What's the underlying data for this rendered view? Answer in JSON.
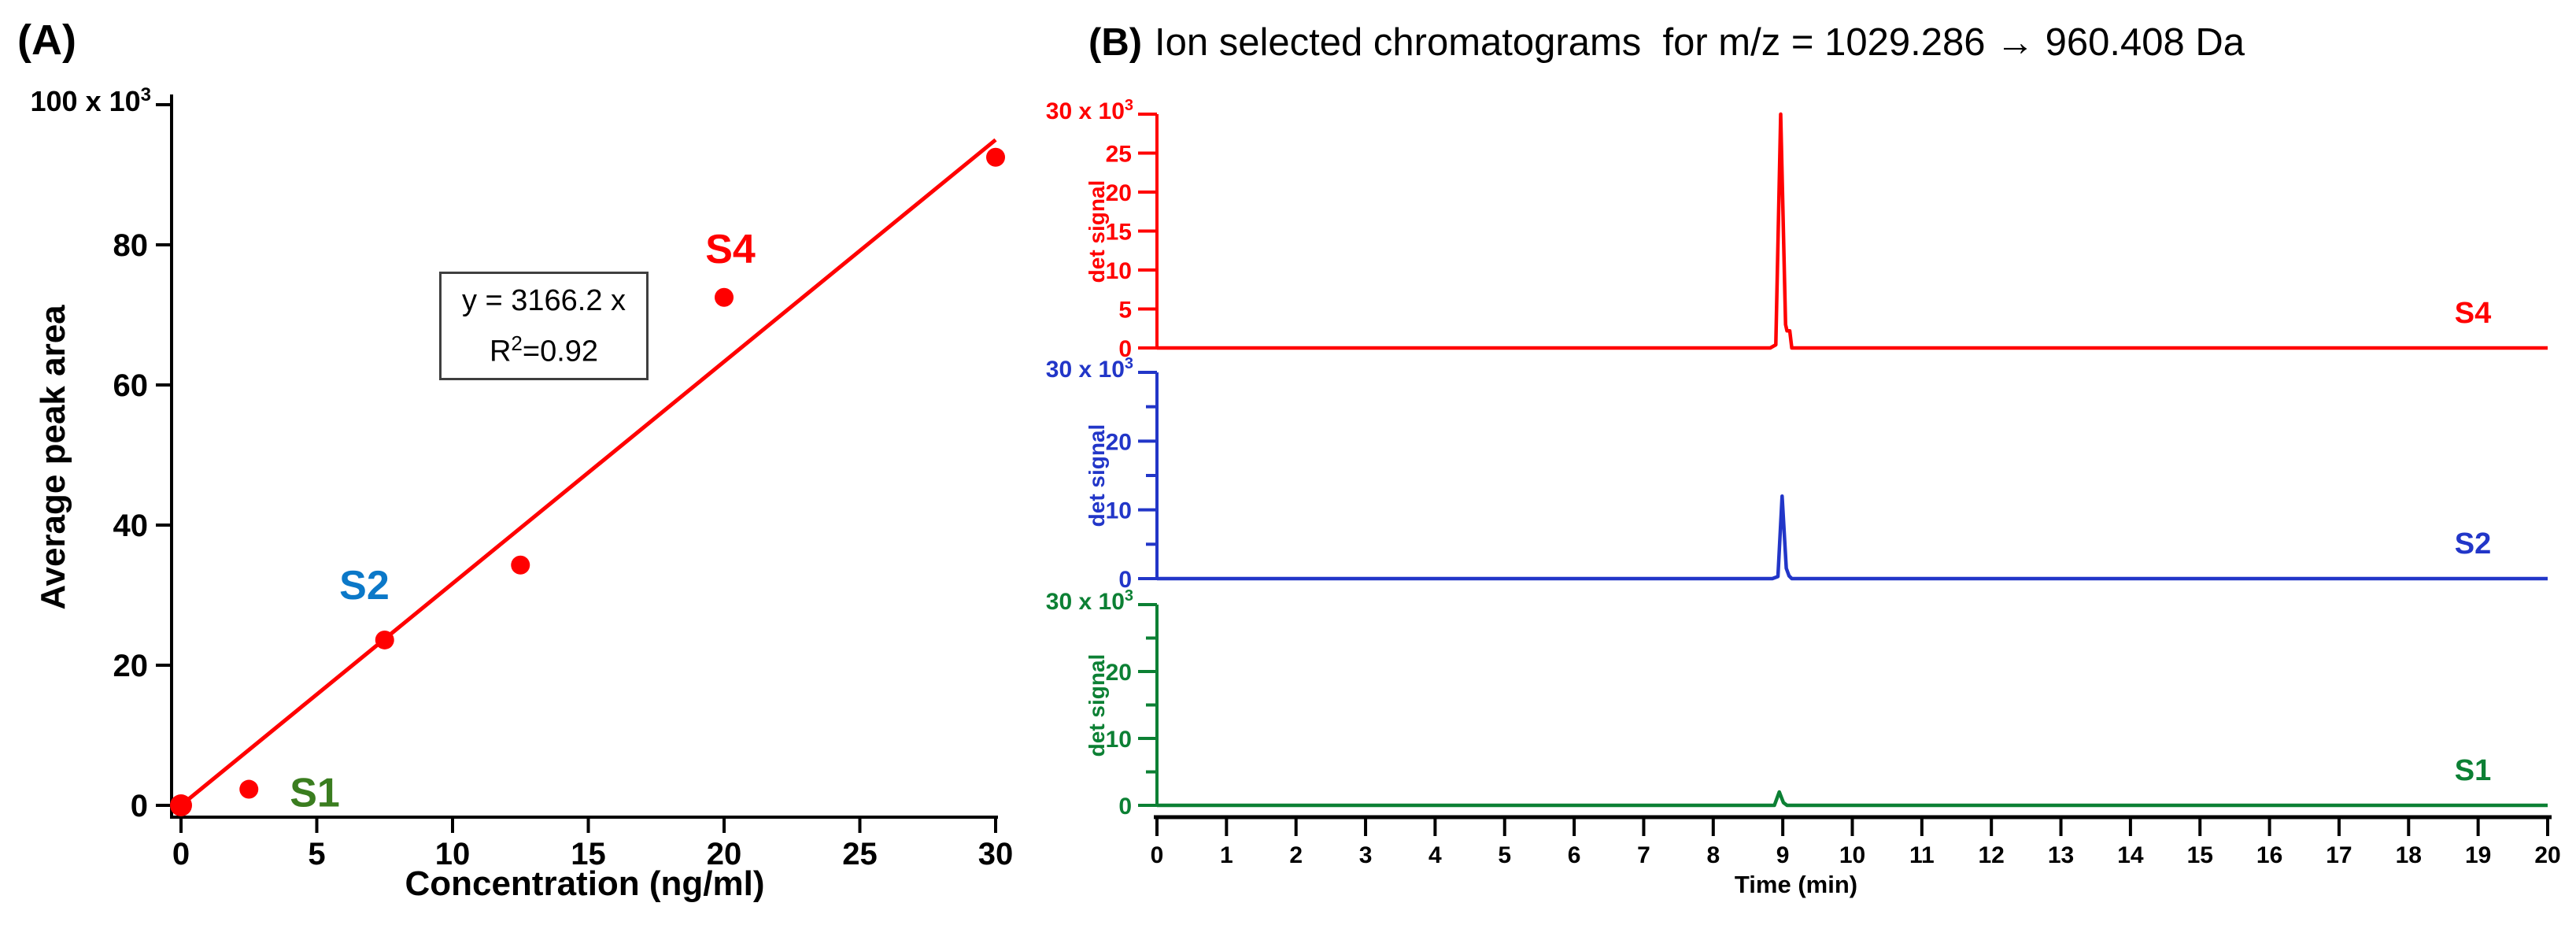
{
  "panel_a": {
    "tag": "(A)",
    "ylabel": "Average peak area",
    "xlabel": "Concentration (ng/ml)",
    "y_scale_label": {
      "base": "100 x 10",
      "exp": "3"
    },
    "equation_line": "y = 3166.2 x",
    "r_base": "R",
    "r_exp": "2",
    "r_rest": "=0.92"
  },
  "panel_b": {
    "tag": "(B)",
    "title": "Ion selected chromatograms  for m/z = 1029.286 → 960.408 Da",
    "scale_label": {
      "base": "30 x 10",
      "exp": "3"
    },
    "ylabel": "det signal",
    "xlabel": "Time (min)"
  },
  "chart_data": [
    {
      "type": "scatter",
      "panel": "A",
      "title": "Calibration curve",
      "xlabel": "Concentration (ng/ml)",
      "ylabel": "Average peak area",
      "y_scale_factor": "x10^3",
      "xlim": [
        0,
        30
      ],
      "ylim": [
        0,
        100
      ],
      "x_ticks": [
        0,
        5,
        10,
        15,
        20,
        25,
        30
      ],
      "y_ticks": [
        0,
        20,
        40,
        60,
        80,
        100
      ],
      "grid": false,
      "series_color": "#ff0000",
      "points": [
        {
          "x": 0,
          "y": 0,
          "label": null
        },
        {
          "x": 2.5,
          "y": 2.3,
          "label": "S1",
          "label_color": "#3a7d1f"
        },
        {
          "x": 7.5,
          "y": 23.6,
          "label": "S2",
          "label_color": "#0b78c8"
        },
        {
          "x": 12.5,
          "y": 34.3,
          "label": null
        },
        {
          "x": 20,
          "y": 72.5,
          "label": "S4",
          "label_color": "#ff0000"
        },
        {
          "x": 30,
          "y": 92.5,
          "label": null
        }
      ],
      "fit": {
        "equation": "y = 3166.2 x",
        "r_squared": 0.92,
        "slope": 3166.2,
        "x_range": [
          0,
          30
        ]
      }
    },
    {
      "type": "line",
      "panel": "B",
      "title": "Ion selected chromatograms for m/z = 1029.286 → 960.408 Da",
      "xlabel": "Time (min)",
      "xlim": [
        0,
        20
      ],
      "x_ticks": [
        0,
        1,
        2,
        3,
        4,
        5,
        6,
        7,
        8,
        9,
        10,
        11,
        12,
        13,
        14,
        15,
        16,
        17,
        18,
        19,
        20
      ],
      "ylim": [
        0,
        30
      ],
      "y_scale_factor": "x10^3",
      "shared_retention_time_min": 9,
      "series": [
        {
          "name": "S4",
          "color": "#ff0000",
          "ylabel": "det signal",
          "peak_height": 30,
          "retention_time_min": 9,
          "y_labeled_ticks": [
            0,
            5,
            10,
            15,
            20,
            25
          ],
          "y_minor_ticks": [],
          "points": [
            [
              0,
              0
            ],
            [
              8.82,
              0
            ],
            [
              8.9,
              0.4
            ],
            [
              8.97,
              30
            ],
            [
              9.04,
              3
            ],
            [
              9.06,
              2.2
            ],
            [
              9.1,
              2.2
            ],
            [
              9.13,
              0
            ],
            [
              20,
              0
            ]
          ]
        },
        {
          "name": "S2",
          "color": "#2236c8",
          "ylabel": "det signal",
          "peak_height": 12,
          "retention_time_min": 9,
          "y_labeled_ticks": [
            0,
            10,
            20
          ],
          "y_minor_ticks": [
            5,
            15,
            25
          ],
          "points": [
            [
              0,
              0
            ],
            [
              8.85,
              0
            ],
            [
              8.93,
              0.3
            ],
            [
              8.99,
              12
            ],
            [
              9.05,
              1.5
            ],
            [
              9.09,
              0.4
            ],
            [
              9.13,
              0
            ],
            [
              20,
              0
            ]
          ]
        },
        {
          "name": "S1",
          "color": "#0c8034",
          "ylabel": "det signal",
          "peak_height": 2,
          "retention_time_min": 9,
          "y_labeled_ticks": [
            0,
            10,
            20
          ],
          "y_minor_ticks": [
            5,
            15,
            25
          ],
          "points": [
            [
              0,
              0
            ],
            [
              8.88,
              0
            ],
            [
              8.95,
              2
            ],
            [
              9.01,
              0.4
            ],
            [
              9.06,
              0
            ],
            [
              20,
              0
            ]
          ]
        }
      ]
    }
  ]
}
